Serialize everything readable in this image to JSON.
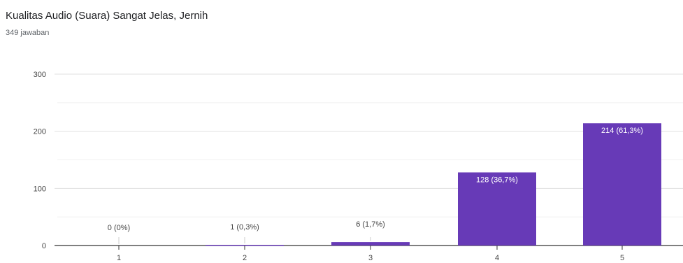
{
  "header": {
    "title": "Kualitas Audio (Suara) Sangat Jelas, Jernih",
    "response_count": "349 jawaban"
  },
  "chart_data": {
    "type": "bar",
    "categories": [
      "1",
      "2",
      "3",
      "4",
      "5"
    ],
    "values": [
      0,
      1,
      6,
      128,
      214
    ],
    "data_labels": [
      "0 (0%)",
      "1 (0,3%)",
      "6 (1,7%)",
      "128 (36,7%)",
      "214 (61,3%)"
    ],
    "yticks": [
      0,
      100,
      200,
      300
    ],
    "ylim": [
      0,
      300
    ],
    "grid": true,
    "bar_color": "#673ab7"
  }
}
